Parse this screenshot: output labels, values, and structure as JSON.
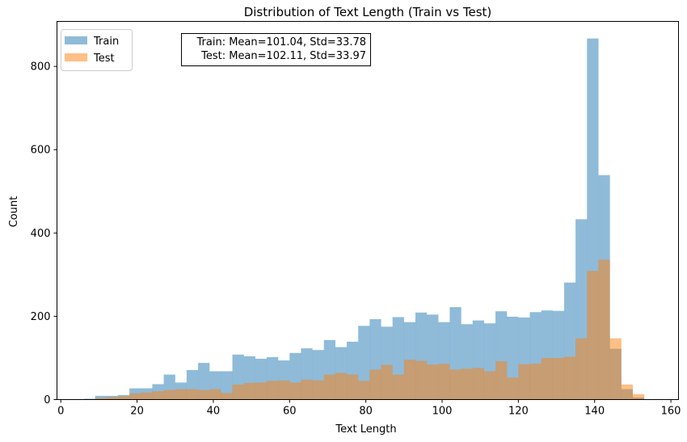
{
  "chart_data": {
    "type": "histogram",
    "title": "Distribution of Text Length (Train vs Test)",
    "xlabel": "Text Length",
    "ylabel": "Count",
    "xlim": [
      -1,
      162
    ],
    "ylim": [
      0,
      908
    ],
    "xticks": [
      0,
      20,
      40,
      60,
      80,
      100,
      120,
      140,
      160
    ],
    "yticks": [
      0,
      200,
      400,
      600,
      800
    ],
    "bin_start": 6,
    "bin_width": 3,
    "alpha": 0.5,
    "series": [
      {
        "name": "Train",
        "color": "#1f77b4",
        "values": [
          2,
          9,
          9,
          11,
          27,
          27,
          37,
          60,
          41,
          71,
          88,
          68,
          68,
          108,
          104,
          98,
          102,
          94,
          112,
          123,
          119,
          143,
          126,
          139,
          177,
          193,
          175,
          198,
          186,
          209,
          204,
          186,
          222,
          181,
          190,
          183,
          212,
          199,
          197,
          210,
          214,
          213,
          281,
          433,
          867,
          539,
          122,
          25,
          5,
          1,
          1,
          1
        ]
      },
      {
        "name": "Test",
        "color": "#ff7f0e",
        "values": [
          0,
          4,
          6,
          8,
          15,
          17,
          20,
          23,
          25,
          25,
          23,
          25,
          16,
          36,
          40,
          41,
          45,
          46,
          41,
          48,
          46,
          60,
          64,
          60,
          45,
          72,
          83,
          60,
          96,
          93,
          84,
          86,
          72,
          74,
          76,
          68,
          92,
          53,
          85,
          86,
          100,
          100,
          103,
          147,
          309,
          336,
          147,
          36,
          13,
          0,
          0,
          0
        ]
      }
    ],
    "legend_location": "upper-left",
    "stats_box": [
      "Train: Mean=101.04, Std=33.78",
      "Test: Mean=102.11, Std=33.97"
    ]
  }
}
